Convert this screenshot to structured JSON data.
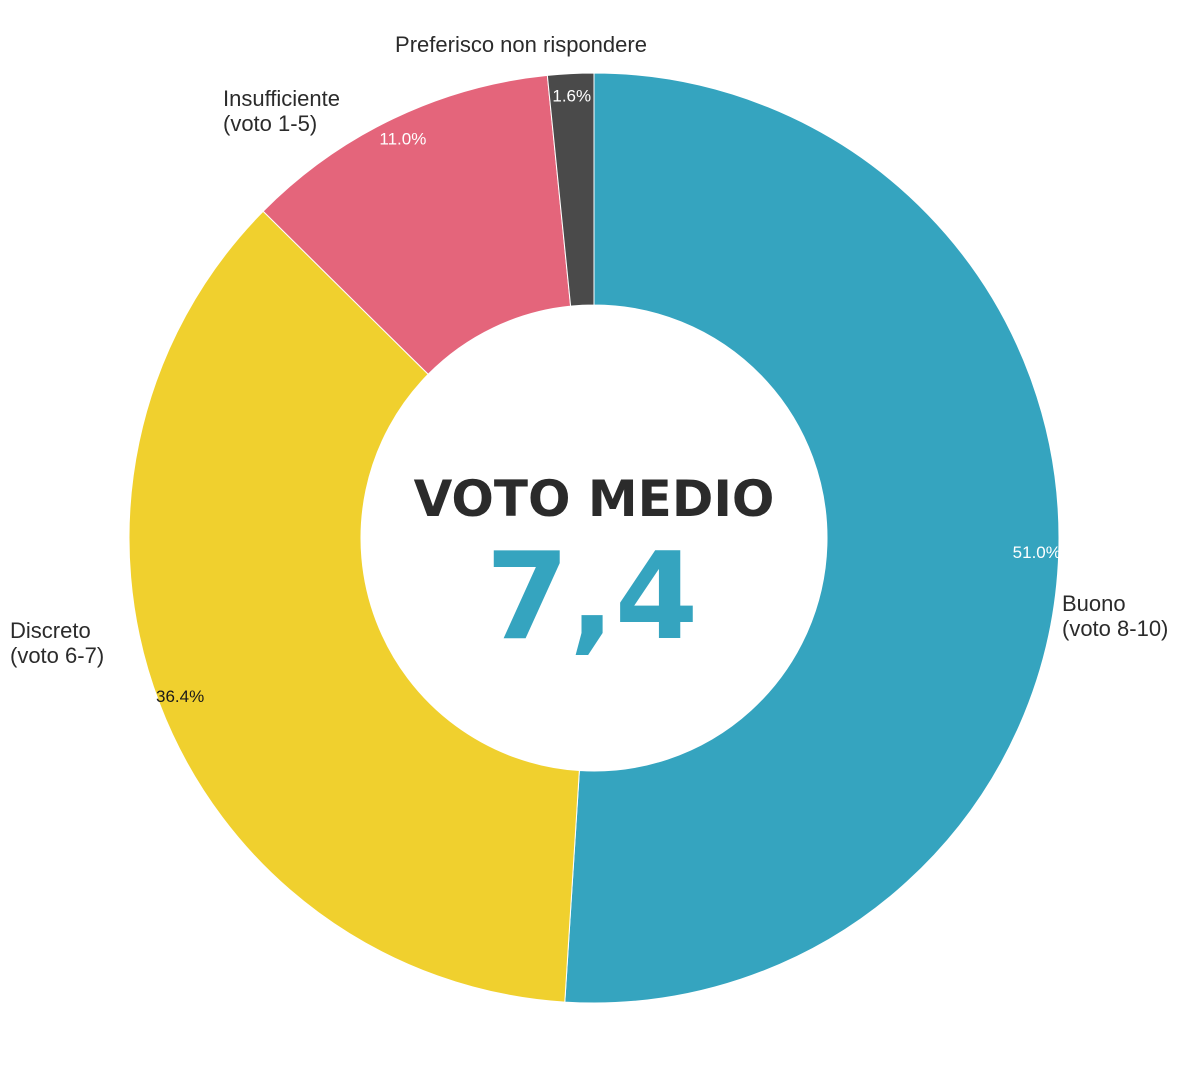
{
  "chart_data": {
    "type": "pie",
    "hole": true,
    "slices": [
      {
        "label": [
          "Buono",
          "(voto 8-10)"
        ],
        "value": 51.0,
        "pct_text": "51.0%",
        "color": "#35a4bf",
        "pct_color": "#ffffff"
      },
      {
        "label": [
          "Discreto",
          "(voto 6-7)"
        ],
        "value": 36.4,
        "pct_text": "36.4%",
        "color": "#f0d02e",
        "pct_color": "#1a1a1a"
      },
      {
        "label": [
          "Insufficiente",
          "(voto 1-5)"
        ],
        "value": 11.0,
        "pct_text": "11.0%",
        "color": "#e4657b",
        "pct_color": "#ffffff"
      },
      {
        "label": [
          "Preferisco non rispondere"
        ],
        "value": 1.6,
        "pct_text": "1.6%",
        "color": "#4a4a4a",
        "pct_color": "#ffffff"
      }
    ],
    "center": {
      "title": "VOTO MEDIO",
      "value": "7,4",
      "value_color": "#35a4bf"
    }
  }
}
